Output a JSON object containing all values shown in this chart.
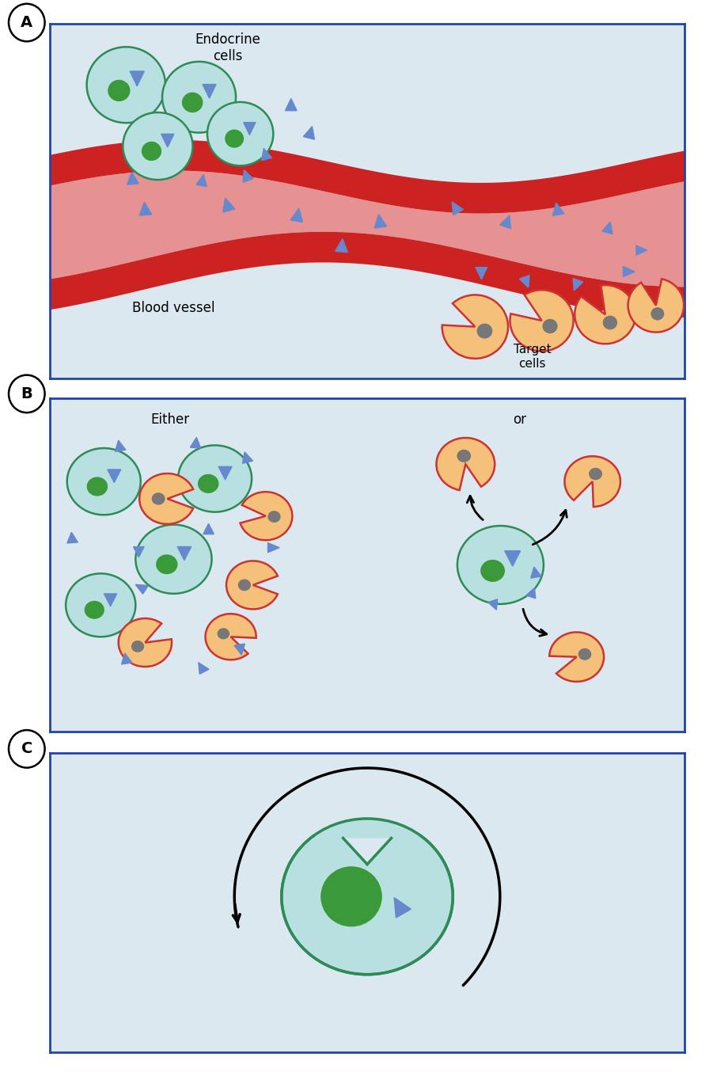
{
  "panel_A": {
    "bg_color": "#dce8f0",
    "endocrine_cell_color": "#b8e0e0",
    "endocrine_cell_edge": "#2e8b57",
    "endocrine_nucleus_color": "#3a9a3a",
    "target_cell_color": "#f5c07a",
    "target_cell_edge": "#cc3333",
    "target_nucleus_color": "#777777",
    "triangle_color": "#6688cc",
    "blood_vessel_fill": "#e06060",
    "blood_vessel_light": "#e88888",
    "blood_vessel_edge": "#cc2222",
    "text_endocrine": "Endocrine\ncells",
    "text_blood": "Blood vessel",
    "text_target": "Target\ncells"
  },
  "panel_B": {
    "bg_color": "#dce8f0",
    "endocrine_cell_color": "#b8e0e0",
    "endocrine_cell_edge": "#2e8b57",
    "endocrine_nucleus_color": "#3a9a3a",
    "target_cell_color": "#f5c07a",
    "target_cell_edge": "#cc3333",
    "target_nucleus_color": "#777777",
    "triangle_color": "#6688cc",
    "text_either": "Either",
    "text_or": "or"
  },
  "panel_C": {
    "bg_color": "#dce8f0",
    "endocrine_cell_color": "#b8e0e0",
    "endocrine_cell_edge": "#2e8b57",
    "endocrine_nucleus_color": "#3a9a3a",
    "triangle_color": "#6688cc"
  },
  "panel_border_color": "#2244aa",
  "label_fontsize": 14,
  "text_fontsize": 12
}
